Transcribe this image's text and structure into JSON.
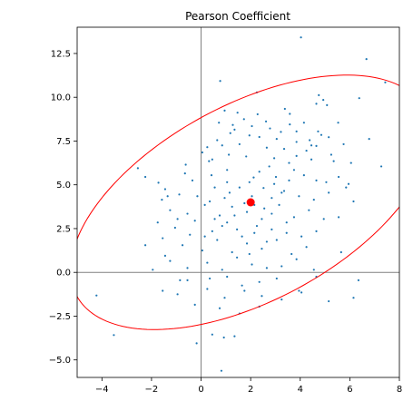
{
  "chart_data": {
    "type": "scatter",
    "title": "Pearson Coefficient",
    "xlabel": "",
    "ylabel": "",
    "xlim": [
      -5,
      8
    ],
    "ylim": [
      -6,
      14
    ],
    "xticks": [
      -4,
      -2,
      0,
      2,
      4,
      6,
      8
    ],
    "yticks": [
      -5.0,
      -2.5,
      0.0,
      2.5,
      5.0,
      7.5,
      10.0,
      12.5
    ],
    "xtick_labels": [
      "−4",
      "−2",
      "0",
      "2",
      "4",
      "6",
      "8"
    ],
    "ytick_labels": [
      "−5.0",
      "−2.5",
      "0.0",
      "2.5",
      "5.0",
      "7.5",
      "10.0",
      "12.5"
    ],
    "grid": false,
    "reference_lines": {
      "x": 0,
      "y": 0,
      "color": "#808080"
    },
    "center_point": {
      "x": 2.0,
      "y": 4.0,
      "color": "#ff0000"
    },
    "ellipse": {
      "center_x": 2.0,
      "center_y": 4.0,
      "semi_major": 9.0,
      "semi_minor": 4.96,
      "angle_deg": 45,
      "color": "#ff0000"
    },
    "point_color": "#1f77b4",
    "points": [
      [
        4.03,
        13.42
      ],
      [
        6.67,
        12.18
      ],
      [
        7.43,
        10.85
      ],
      [
        0.77,
        10.93
      ],
      [
        2.25,
        10.28
      ],
      [
        4.75,
        10.12
      ],
      [
        6.38,
        9.95
      ],
      [
        4.93,
        9.85
      ],
      [
        0.95,
        9.24
      ],
      [
        1.47,
        9.12
      ],
      [
        3.38,
        9.34
      ],
      [
        3.58,
        9.05
      ],
      [
        2.28,
        9.03
      ],
      [
        4.65,
        9.63
      ],
      [
        5.08,
        9.55
      ],
      [
        1.73,
        8.75
      ],
      [
        2.62,
        8.62
      ],
      [
        3.58,
        8.45
      ],
      [
        4.15,
        8.55
      ],
      [
        5.53,
        8.55
      ],
      [
        0.72,
        8.55
      ],
      [
        1.28,
        8.42
      ],
      [
        2.78,
        8.22
      ],
      [
        3.22,
        8.02
      ],
      [
        4.72,
        8.05
      ],
      [
        6.78,
        7.62
      ],
      [
        1.18,
        7.95
      ],
      [
        1.95,
        7.82
      ],
      [
        2.35,
        7.73
      ],
      [
        3.05,
        7.62
      ],
      [
        3.85,
        7.45
      ],
      [
        4.38,
        7.55
      ],
      [
        5.15,
        7.72
      ],
      [
        0.25,
        7.15
      ],
      [
        0.85,
        7.25
      ],
      [
        1.55,
        7.32
      ],
      [
        2.65,
        7.12
      ],
      [
        3.35,
        7.05
      ],
      [
        4.65,
        7.22
      ],
      [
        5.75,
        7.32
      ],
      [
        -2.55,
        5.95
      ],
      [
        -2.25,
        5.45
      ],
      [
        -0.62,
        6.15
      ],
      [
        0.32,
        6.35
      ],
      [
        1.12,
        6.72
      ],
      [
        1.82,
        6.62
      ],
      [
        2.95,
        6.52
      ],
      [
        3.85,
        6.65
      ],
      [
        4.45,
        6.45
      ],
      [
        5.25,
        6.72
      ],
      [
        6.05,
        6.25
      ],
      [
        7.27,
        6.05
      ],
      [
        -1.72,
        5.12
      ],
      [
        -1.45,
        4.75
      ],
      [
        -0.35,
        5.25
      ],
      [
        0.42,
        5.55
      ],
      [
        1.05,
        5.15
      ],
      [
        2.12,
        5.42
      ],
      [
        3.02,
        5.45
      ],
      [
        3.55,
        5.25
      ],
      [
        4.15,
        5.55
      ],
      [
        5.05,
        5.15
      ],
      [
        5.55,
        5.45
      ],
      [
        5.95,
        5.05
      ],
      [
        -1.58,
        4.15
      ],
      [
        -0.88,
        4.45
      ],
      [
        -0.15,
        4.35
      ],
      [
        0.55,
        4.85
      ],
      [
        0.95,
        4.25
      ],
      [
        1.55,
        4.85
      ],
      [
        2.52,
        4.82
      ],
      [
        2.85,
        4.25
      ],
      [
        3.25,
        4.55
      ],
      [
        3.95,
        4.35
      ],
      [
        4.55,
        4.15
      ],
      [
        5.15,
        4.55
      ],
      [
        6.15,
        4.05
      ],
      [
        -1.25,
        3.55
      ],
      [
        -0.55,
        3.35
      ],
      [
        0.15,
        3.85
      ],
      [
        0.75,
        3.25
      ],
      [
        1.25,
        3.75
      ],
      [
        1.85,
        3.45
      ],
      [
        2.45,
        3.05
      ],
      [
        3.15,
        3.85
      ],
      [
        3.75,
        3.15
      ],
      [
        4.35,
        3.55
      ],
      [
        4.95,
        3.05
      ],
      [
        5.55,
        3.15
      ],
      [
        -1.75,
        2.85
      ],
      [
        -1.05,
        2.55
      ],
      [
        -0.25,
        2.95
      ],
      [
        0.45,
        2.35
      ],
      [
        1.05,
        2.85
      ],
      [
        1.65,
        2.05
      ],
      [
        2.25,
        2.65
      ],
      [
        2.85,
        2.45
      ],
      [
        3.45,
        2.85
      ],
      [
        4.05,
        2.05
      ],
      [
        4.65,
        2.35
      ],
      [
        -2.25,
        1.55
      ],
      [
        -1.55,
        1.95
      ],
      [
        -0.75,
        1.55
      ],
      [
        0.05,
        1.25
      ],
      [
        0.65,
        1.85
      ],
      [
        1.25,
        1.15
      ],
      [
        1.85,
        1.65
      ],
      [
        2.45,
        1.35
      ],
      [
        3.05,
        1.85
      ],
      [
        3.65,
        1.05
      ],
      [
        4.25,
        1.45
      ],
      [
        5.65,
        1.15
      ],
      [
        -1.25,
        0.65
      ],
      [
        -0.55,
        0.25
      ],
      [
        0.25,
        0.55
      ],
      [
        0.85,
        0.15
      ],
      [
        1.45,
        0.85
      ],
      [
        2.05,
        0.45
      ],
      [
        2.65,
        0.25
      ],
      [
        3.25,
        0.35
      ],
      [
        3.85,
        0.75
      ],
      [
        4.55,
        0.15
      ],
      [
        -1.95,
        0.15
      ],
      [
        -0.55,
        -0.45
      ],
      [
        0.35,
        -0.35
      ],
      [
        1.05,
        -0.25
      ],
      [
        1.65,
        -0.75
      ],
      [
        2.35,
        -0.55
      ],
      [
        3.05,
        -0.35
      ],
      [
        3.95,
        -1.05
      ],
      [
        4.65,
        -0.25
      ],
      [
        6.35,
        -0.45
      ],
      [
        -1.55,
        -1.05
      ],
      [
        -0.95,
        -1.25
      ],
      [
        0.25,
        -0.95
      ],
      [
        0.95,
        -1.45
      ],
      [
        1.75,
        -1.05
      ],
      [
        2.45,
        -1.35
      ],
      [
        3.25,
        -1.55
      ],
      [
        4.05,
        -1.15
      ],
      [
        5.15,
        -1.65
      ],
      [
        6.15,
        -1.45
      ],
      [
        -0.25,
        -1.85
      ],
      [
        0.75,
        -2.05
      ],
      [
        1.55,
        -2.35
      ],
      [
        2.35,
        -1.95
      ],
      [
        -4.22,
        -1.32
      ],
      [
        -3.52,
        -3.58
      ],
      [
        -0.18,
        -4.05
      ],
      [
        0.92,
        -3.72
      ],
      [
        1.35,
        -3.65
      ],
      [
        0.82,
        -5.62
      ],
      [
        0.45,
        -3.55
      ],
      [
        -0.85,
        -0.45
      ],
      [
        -1.45,
        0.95
      ],
      [
        0.15,
        2.05
      ],
      [
        0.55,
        3.05
      ],
      [
        0.35,
        4.05
      ],
      [
        1.15,
        4.55
      ],
      [
        1.95,
        5.15
      ],
      [
        2.35,
        5.75
      ],
      [
        2.75,
        6.05
      ],
      [
        3.55,
        6.25
      ],
      [
        4.25,
        6.95
      ],
      [
        4.85,
        7.85
      ],
      [
        2.15,
        3.85
      ],
      [
        2.05,
        4.35
      ],
      [
        1.75,
        3.95
      ],
      [
        2.55,
        3.65
      ],
      [
        1.35,
        3.25
      ],
      [
        2.85,
        3.35
      ],
      [
        1.45,
        2.45
      ],
      [
        2.15,
        2.25
      ],
      [
        3.35,
        4.65
      ],
      [
        2.95,
        5.05
      ],
      [
        1.05,
        5.85
      ],
      [
        0.45,
        6.45
      ],
      [
        3.75,
        5.85
      ],
      [
        4.65,
        5.25
      ],
      [
        0.85,
        2.65
      ],
      [
        1.95,
        1.05
      ],
      [
        2.65,
        1.75
      ],
      [
        3.45,
        2.25
      ],
      [
        -0.45,
        2.15
      ],
      [
        -0.95,
        3.05
      ],
      [
        -1.35,
        4.35
      ],
      [
        -0.65,
        5.65
      ],
      [
        0.05,
        6.85
      ],
      [
        0.65,
        7.55
      ],
      [
        1.35,
        8.15
      ],
      [
        2.05,
        8.35
      ],
      [
        3.85,
        8.05
      ],
      [
        4.45,
        7.25
      ],
      [
        5.35,
        6.35
      ],
      [
        5.85,
        4.85
      ]
    ]
  }
}
